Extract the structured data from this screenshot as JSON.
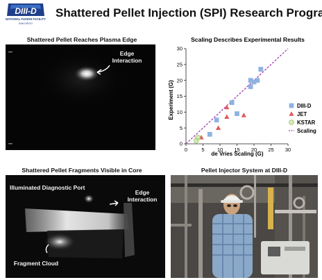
{
  "header": {
    "logo_text": "DIII-D",
    "logo_subtext": "NATIONAL FUSION FACILITY",
    "logo_location": "SAN DIEGO",
    "title": "Shattered Pellet Injection (SPI) Research Program"
  },
  "panels": {
    "plasma_edge": {
      "caption": "Shattered Pellet Reaches Plasma Edge",
      "annotation_1": "Edge",
      "annotation_2": "Interaction"
    },
    "fragments": {
      "caption": "Shattered Pellet Fragments Visible in Core",
      "port_label": "Illuminated Diagnostic Port",
      "edge_label_1": "Edge",
      "edge_label_2": "Interaction",
      "cloud_label": "Fragment Cloud"
    },
    "injector": {
      "caption": "Pellet Injector System at DIII-D"
    }
  },
  "chart_data": {
    "type": "scatter",
    "title": "Scaling Describes Experimental Results",
    "xlabel": "de Vries Scaling (G)",
    "ylabel": "Experiment (G)",
    "xlim": [
      0,
      30
    ],
    "ylim": [
      0,
      30
    ],
    "xticks": [
      0,
      5,
      10,
      15,
      20,
      25,
      30
    ],
    "yticks": [
      0,
      5,
      10,
      15,
      20,
      25,
      30
    ],
    "grid": false,
    "legend_position": "right",
    "series": [
      {
        "name": "DIII-D",
        "marker": "square",
        "color": "#8fb2e0",
        "points": [
          [
            7,
            3
          ],
          [
            9,
            7.5
          ],
          [
            13.5,
            13
          ],
          [
            15,
            9.5
          ],
          [
            19,
            18
          ],
          [
            19,
            20
          ],
          [
            20,
            19.5
          ],
          [
            21,
            20
          ],
          [
            22,
            23.5
          ]
        ]
      },
      {
        "name": "JET",
        "marker": "triangle",
        "color": "#e05a5a",
        "points": [
          [
            4.5,
            2
          ],
          [
            9.5,
            5
          ],
          [
            12,
            8.5
          ],
          [
            12,
            11.5
          ],
          [
            17,
            9
          ]
        ]
      },
      {
        "name": "KSTAR",
        "marker": "circle",
        "color": "#a8cf74",
        "points": [
          [
            3,
            1
          ],
          [
            3.5,
            2
          ]
        ]
      },
      {
        "name": "Scaling",
        "marker": "line",
        "color": "#a63db8",
        "points": [
          [
            0,
            0
          ],
          [
            30,
            30
          ]
        ]
      }
    ]
  }
}
